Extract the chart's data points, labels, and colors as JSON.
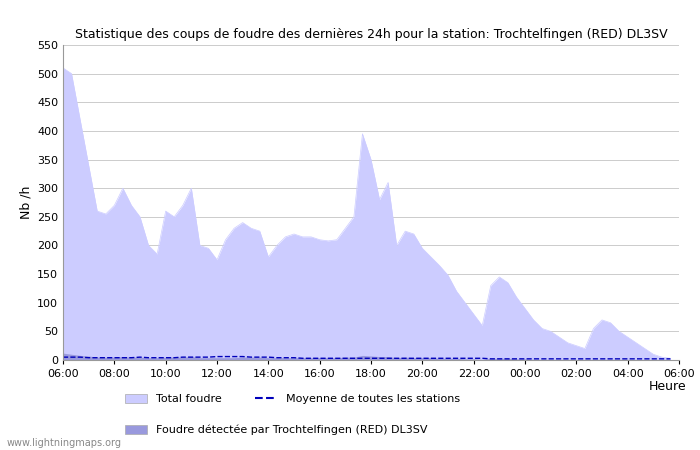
{
  "title": "Statistique des coups de foudre des dernières 24h pour la station: Trochtelfingen (RED) DL3SV",
  "ylabel": "Nb /h",
  "xlabel": "Heure",
  "watermark": "www.lightningmaps.org",
  "ylim": [
    0,
    550
  ],
  "yticks": [
    0,
    50,
    100,
    150,
    200,
    250,
    300,
    350,
    400,
    450,
    500,
    550
  ],
  "xtick_labels": [
    "06:00",
    "08:00",
    "10:00",
    "12:00",
    "14:00",
    "16:00",
    "18:00",
    "20:00",
    "22:00",
    "00:00",
    "02:00",
    "04:00",
    "06:00"
  ],
  "fill_color_total": "#ccccff",
  "fill_color_station": "#9999dd",
  "line_color": "#0000bb",
  "background_color": "#ffffff",
  "grid_color": "#cccccc",
  "legend_total": "Total foudre",
  "legend_station": "Foudre détectée par Trochtelfingen (RED) DL3SV",
  "legend_moyenne": "Moyenne de toutes les stations",
  "total_foudre": [
    510,
    500,
    420,
    340,
    260,
    255,
    270,
    300,
    270,
    250,
    200,
    185,
    260,
    250,
    270,
    300,
    200,
    195,
    175,
    210,
    230,
    240,
    230,
    225,
    180,
    200,
    215,
    220,
    215,
    215,
    210,
    208,
    210,
    230,
    250,
    395,
    350,
    280,
    310,
    200,
    225,
    220,
    195,
    180,
    165,
    148,
    120,
    100,
    80,
    60,
    130,
    145,
    135,
    110,
    90,
    70,
    55,
    50,
    40,
    30,
    25,
    20,
    55,
    70,
    65,
    50,
    40,
    30,
    20,
    10,
    5,
    3
  ],
  "station_foudre": [
    12,
    10,
    8,
    7,
    5,
    5,
    5,
    6,
    5,
    5,
    4,
    4,
    5,
    5,
    5,
    6,
    4,
    4,
    4,
    4,
    4,
    5,
    5,
    5,
    4,
    4,
    4,
    4,
    4,
    4,
    4,
    4,
    4,
    5,
    5,
    8,
    7,
    6,
    6,
    4,
    5,
    4,
    4,
    4,
    3,
    3,
    3,
    2,
    2,
    1,
    3,
    3,
    3,
    2,
    2,
    1,
    1,
    1,
    1,
    1,
    0,
    0,
    1,
    1,
    1,
    1,
    1,
    0,
    0,
    0,
    0,
    0
  ],
  "moyenne": [
    5,
    5,
    5,
    4,
    4,
    4,
    4,
    4,
    4,
    5,
    4,
    4,
    4,
    4,
    5,
    5,
    5,
    5,
    6,
    6,
    6,
    6,
    5,
    5,
    5,
    4,
    4,
    4,
    3,
    3,
    3,
    3,
    3,
    3,
    3,
    3,
    3,
    3,
    3,
    3,
    3,
    3,
    3,
    3,
    3,
    3,
    3,
    3,
    3,
    3,
    2,
    2,
    2,
    2,
    2,
    2,
    2,
    2,
    2,
    2,
    2,
    2,
    2,
    2,
    2,
    2,
    2,
    2,
    2,
    2,
    2,
    2
  ]
}
